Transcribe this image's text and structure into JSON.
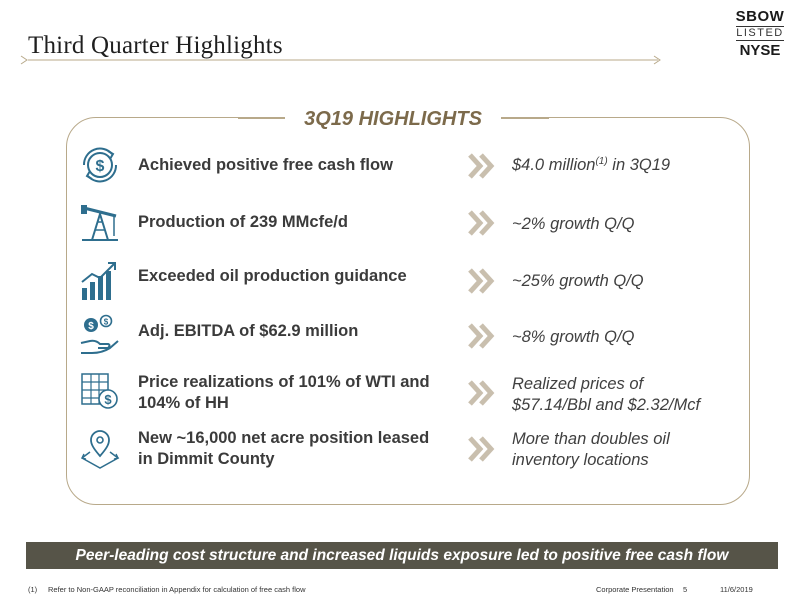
{
  "header": {
    "title": "Third Quarter Highlights",
    "logo": {
      "ticker": "SBOW",
      "listed": "LISTED",
      "exchange": "NYSE"
    }
  },
  "panel": {
    "title": "3Q19 HIGHLIGHTS",
    "rows": [
      {
        "icon": "dollar-cycle-icon",
        "achievement": "Achieved positive free cash flow",
        "result_main": "$4.0 million",
        "result_sup": "(1)",
        "result_tail": " in 3Q19"
      },
      {
        "icon": "pump-jack-icon",
        "achievement": "Production of 239 MMcfe/d",
        "result": "~2% growth Q/Q"
      },
      {
        "icon": "growth-bars-icon",
        "achievement": "Exceeded oil production guidance",
        "result": "~25% growth Q/Q"
      },
      {
        "icon": "hand-money-icon",
        "achievement": "Adj. EBITDA of $62.9 million",
        "result": "~8% growth Q/Q"
      },
      {
        "icon": "price-calc-icon",
        "achievement_line1": "Price realizations of 101% of WTI and",
        "achievement_line2": "104% of HH",
        "result_line1": "Realized prices of",
        "result_line2": "$57.14/Bbl and $2.32/Mcf"
      },
      {
        "icon": "map-pin-icon",
        "achievement_line1": "New ~16,000 net acre position leased",
        "achievement_line2": "in Dimmit County",
        "result_line1": "More than doubles oil",
        "result_line2": "inventory locations"
      }
    ]
  },
  "banner": "Peer-leading cost structure and increased liquids exposure led to positive free cash flow",
  "footer": {
    "footnote_num": "(1)",
    "footnote_text": "Refer to Non-GAAP reconciliation in Appendix for calculation of free cash flow",
    "presentation": "Corporate Presentation",
    "page": "5",
    "date": "11/6/2019"
  },
  "colors": {
    "accent": "#7c6a4b",
    "border": "#b8a98a",
    "icon_blue": "#2e6e8e",
    "chevron": "#c9bfae",
    "banner_bg": "#565448"
  }
}
